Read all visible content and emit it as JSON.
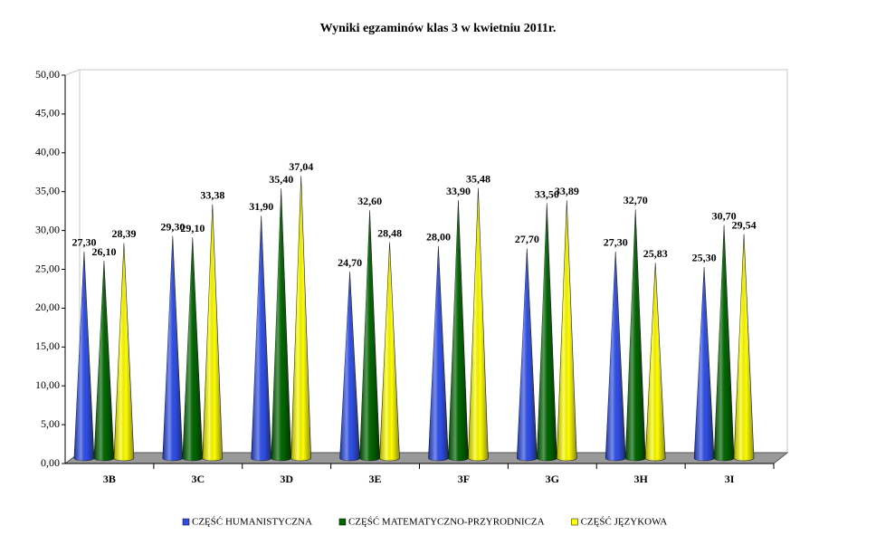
{
  "chart_data": {
    "type": "bar",
    "title": "Wyniki egzaminów klas 3 w kwietniu 2011r.",
    "categories": [
      "3B",
      "3C",
      "3D",
      "3E",
      "3F",
      "3G",
      "3H",
      "3I"
    ],
    "series": [
      {
        "name": "CZĘŚĆ HUMANISTYCZNA",
        "color": "#2f4fe8",
        "values": [
          27.3,
          29.3,
          31.9,
          24.7,
          28.0,
          27.7,
          27.3,
          25.3
        ],
        "value_labels": [
          "27,30",
          "29,30",
          "31,90",
          "24,70",
          "28,00",
          "27,70",
          "27,30",
          "25,30"
        ]
      },
      {
        "name": "CZĘŚĆ MATEMATYCZNO-PRZYRODNICZA",
        "color": "#006600",
        "values": [
          26.1,
          29.1,
          35.4,
          32.6,
          33.9,
          33.5,
          32.7,
          30.7
        ],
        "value_labels": [
          "26,10",
          "29,10",
          "35,40",
          "32,60",
          "33,90",
          "33,50",
          "32,70",
          "30,70"
        ]
      },
      {
        "name": "CZĘŚĆ JĘZYKOWA",
        "color": "#ffff00",
        "values": [
          28.39,
          33.38,
          37.04,
          28.48,
          35.48,
          33.89,
          25.83,
          29.54
        ],
        "value_labels": [
          "28,39",
          "33,38",
          "37,04",
          "28,48",
          "35,48",
          "33,89",
          "25,83",
          "29,54"
        ]
      }
    ],
    "ylim": [
      0,
      50
    ],
    "yticks": [
      {
        "value": 0,
        "label": "0,00"
      },
      {
        "value": 5,
        "label": "5,00"
      },
      {
        "value": 10,
        "label": "10,00"
      },
      {
        "value": 15,
        "label": "15,00"
      },
      {
        "value": 20,
        "label": "20,00"
      },
      {
        "value": 25,
        "label": "25,00"
      },
      {
        "value": 30,
        "label": "30,00"
      },
      {
        "value": 35,
        "label": "35,00"
      },
      {
        "value": 40,
        "label": "40,00"
      },
      {
        "value": 45,
        "label": "45,00"
      },
      {
        "value": 50,
        "label": "50,00"
      }
    ],
    "legend": "bottom"
  }
}
